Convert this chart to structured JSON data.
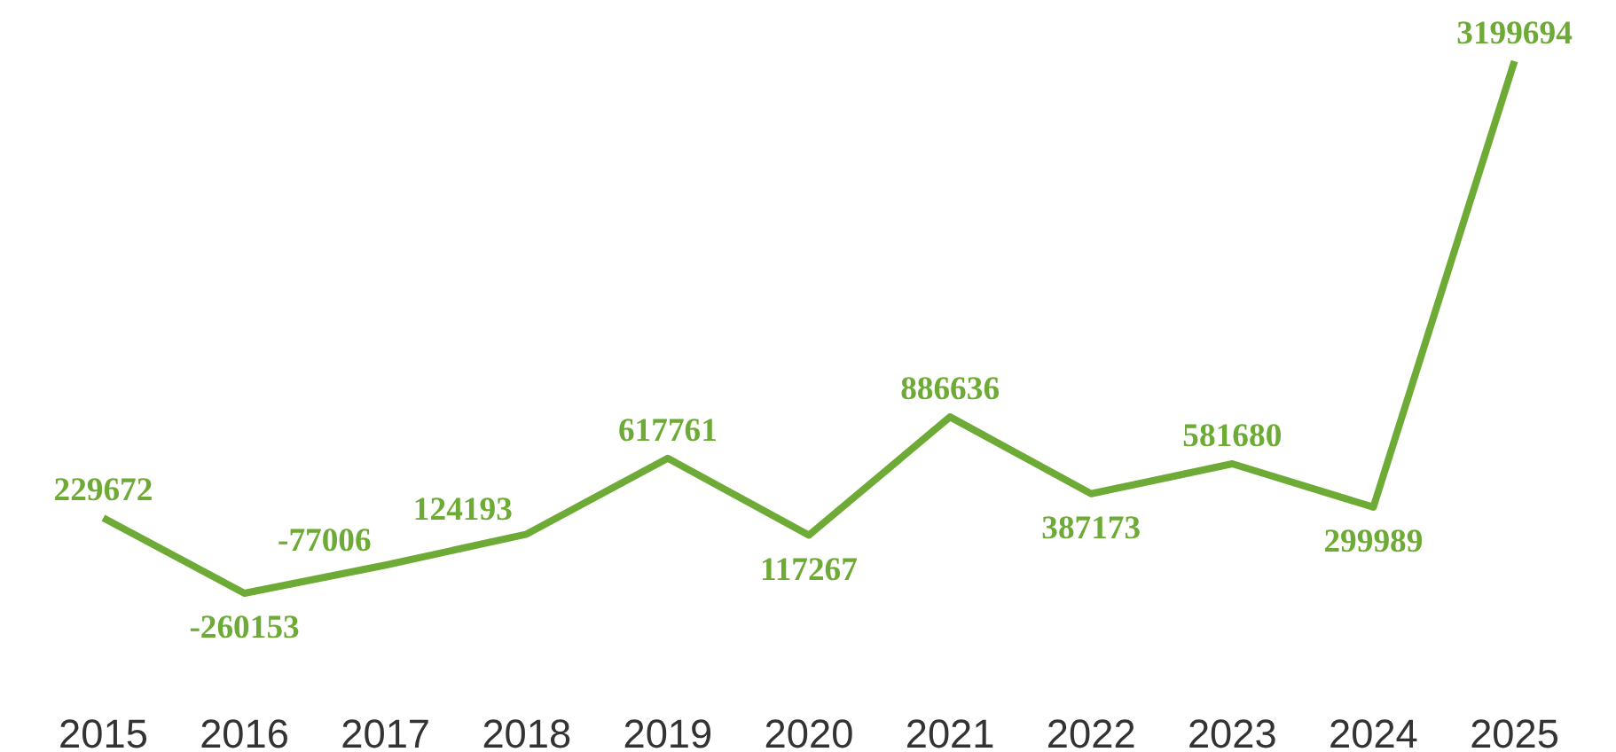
{
  "chart_data": {
    "type": "line",
    "categories": [
      "2015",
      "2016",
      "2017",
      "2018",
      "2019",
      "2020",
      "2021",
      "2022",
      "2023",
      "2024",
      "2025"
    ],
    "values": [
      229672,
      -260153,
      -77006,
      124193,
      617761,
      117267,
      886636,
      387173,
      581680,
      299989,
      3199694
    ],
    "color": "#6eab36",
    "data_labels": true,
    "grid": false,
    "marker": "none",
    "line_style": "solid"
  }
}
